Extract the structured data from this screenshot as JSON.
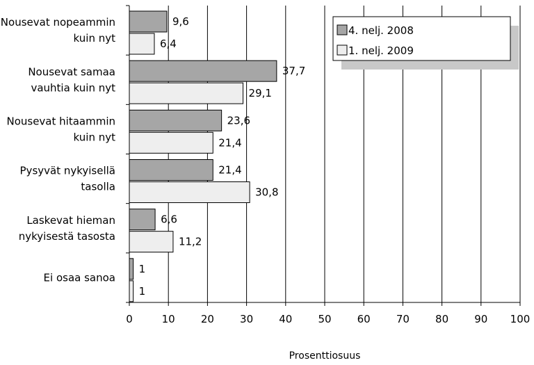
{
  "chart_data": {
    "type": "bar",
    "orientation": "horizontal",
    "categories": [
      [
        "Nousevat nopeammin",
        "kuin nyt"
      ],
      [
        "Nousevat samaa",
        "vauhtia kuin nyt"
      ],
      [
        "Nousevat hitaammin",
        "kuin nyt"
      ],
      [
        "Pysyvät nykyisellä",
        "tasolla"
      ],
      [
        "Laskevat hieman",
        "nykyisestä tasosta"
      ],
      [
        "Ei osaa sanoa"
      ]
    ],
    "series": [
      {
        "name": "4. nelj. 2008",
        "values": [
          9.6,
          37.7,
          23.6,
          21.4,
          6.6,
          1
        ],
        "labels": [
          "9,6",
          "37,7",
          "23,6",
          "21,4",
          "6,6",
          "1"
        ],
        "color": "#a6a6a6"
      },
      {
        "name": "1. nelj. 2009",
        "values": [
          6.4,
          29.1,
          21.4,
          30.8,
          11.2,
          1
        ],
        "labels": [
          "6,4",
          "29,1",
          "21,4",
          "30,8",
          "11,2",
          "1"
        ],
        "color": "#eeeeee"
      }
    ],
    "x_ticks": [
      "0",
      "10",
      "20",
      "30",
      "40",
      "50",
      "60",
      "70",
      "80",
      "90",
      "100"
    ],
    "xlim": [
      0,
      100
    ],
    "xlabel": "Prosenttiosuus",
    "ylabel": "",
    "grid": true,
    "legend_position": "top-right"
  }
}
